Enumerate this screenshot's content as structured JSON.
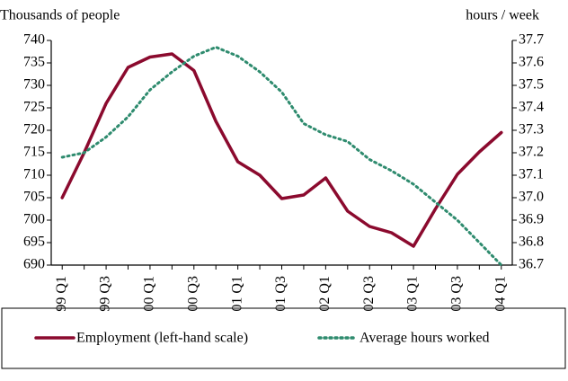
{
  "chart_data": {
    "type": "line",
    "y_label": "Thousands of people",
    "y2_label": "hours / week",
    "categories": [
      "99 Q1",
      null,
      "99 Q3",
      null,
      "00 Q1",
      null,
      "00 Q3",
      null,
      "01 Q1",
      null,
      "01 Q3",
      null,
      "02 Q1",
      null,
      "02 Q3",
      null,
      "03 Q1",
      null,
      "03 Q3",
      null,
      "04 Q1"
    ],
    "series": [
      {
        "name": "Employment (left-hand scale)",
        "color": "#8b0a2e",
        "style": "solid",
        "values": [
          705,
          715,
          726,
          734,
          736.3,
          737,
          733.3,
          722,
          713,
          710,
          704.8,
          705.6,
          709.4,
          702,
          698.6,
          697.2,
          694.2,
          702.5,
          710.2,
          715.2,
          719.5
        ]
      },
      {
        "name": "Average hours worked",
        "color": "#2e8b6e",
        "style": "dotted",
        "axis": "y2",
        "values": [
          37.18,
          37.2,
          37.27,
          37.36,
          37.48,
          37.56,
          37.63,
          37.67,
          37.63,
          37.56,
          37.47,
          37.33,
          37.28,
          37.25,
          37.17,
          37.12,
          37.06,
          36.98,
          36.9,
          36.8,
          36.7
        ]
      }
    ],
    "ylim": [
      690,
      740
    ],
    "yticks": [
      690,
      695,
      700,
      705,
      710,
      715,
      720,
      725,
      730,
      735,
      740
    ],
    "y2lim": [
      36.7,
      37.7
    ],
    "y2ticks": [
      36.7,
      36.8,
      36.9,
      {
        "value": 37,
        "label": "37.0"
      },
      37.1,
      37.2,
      37.3,
      37.4,
      37.5,
      37.6,
      37.7
    ],
    "legend": "bottom"
  }
}
